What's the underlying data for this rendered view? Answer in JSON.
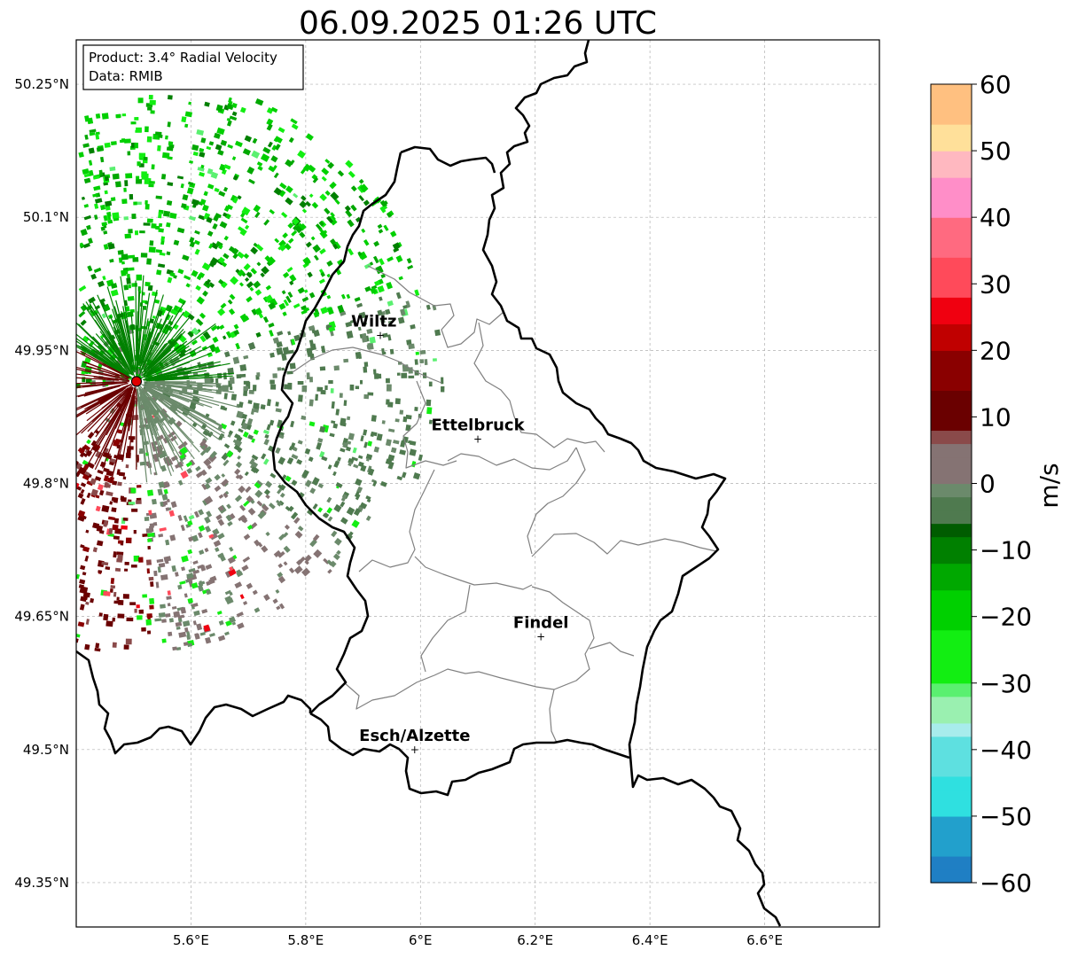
{
  "title": "06.09.2025 01:26 UTC",
  "info_box": {
    "product_line": "Product: 3.4° Radial Velocity",
    "data_line": "Data: RMIB"
  },
  "map": {
    "lon_range": [
      5.4,
      6.8
    ],
    "lat_range": [
      49.3,
      50.3
    ],
    "lon_ticks": [
      {
        "value": 5.6,
        "label": "5.6°E"
      },
      {
        "value": 5.8,
        "label": "5.8°E"
      },
      {
        "value": 6.0,
        "label": "6°E"
      },
      {
        "value": 6.2,
        "label": "6.2°E"
      },
      {
        "value": 6.4,
        "label": "6.4°E"
      },
      {
        "value": 6.6,
        "label": "6.6°E"
      }
    ],
    "lat_ticks": [
      {
        "value": 49.35,
        "label": "49.35°N"
      },
      {
        "value": 49.5,
        "label": "49.5°N"
      },
      {
        "value": 49.65,
        "label": "49.65°N"
      },
      {
        "value": 49.8,
        "label": "49.8°N"
      },
      {
        "value": 49.95,
        "label": "49.95°N"
      },
      {
        "value": 50.1,
        "label": "50.1°N"
      },
      {
        "value": 50.25,
        "label": "50.25°N"
      }
    ],
    "radar_site": {
      "lon": 5.505,
      "lat": 49.915
    },
    "cities": [
      {
        "name": "Wiltz",
        "lon": 5.93,
        "lat": 49.967
      },
      {
        "name": "Ettelbruck",
        "lon": 6.1,
        "lat": 49.85
      },
      {
        "name": "Findel",
        "lon": 6.21,
        "lat": 49.627
      },
      {
        "name": "Esch/Alzette",
        "lon": 5.99,
        "lat": 49.5
      }
    ]
  },
  "colorbar": {
    "unit": "m/s",
    "min": -60,
    "max": 60,
    "ticks": [
      {
        "value": 60,
        "label": "60"
      },
      {
        "value": 50,
        "label": "50"
      },
      {
        "value": 40,
        "label": "40"
      },
      {
        "value": 30,
        "label": "30"
      },
      {
        "value": 20,
        "label": "20"
      },
      {
        "value": 10,
        "label": "10"
      },
      {
        "value": 0,
        "label": "0"
      },
      {
        "value": -10,
        "label": "−10"
      },
      {
        "value": -20,
        "label": "−20"
      },
      {
        "value": -30,
        "label": "−30"
      },
      {
        "value": -40,
        "label": "−40"
      },
      {
        "value": -50,
        "label": "−50"
      },
      {
        "value": -60,
        "label": "−60"
      }
    ],
    "color_stops": [
      {
        "value": -60,
        "color": "#1f7fc4"
      },
      {
        "value": -56,
        "color": "#22a0cc"
      },
      {
        "value": -50,
        "color": "#2fe0e0"
      },
      {
        "value": -44,
        "color": "#5ee0e0"
      },
      {
        "value": -38,
        "color": "#a8ecec"
      },
      {
        "value": -35,
        "color": "#9af0b0"
      },
      {
        "value": -32,
        "color": "#5af070"
      },
      {
        "value": -29,
        "color": "#12ee12"
      },
      {
        "value": -22,
        "color": "#00d000"
      },
      {
        "value": -16,
        "color": "#00a800"
      },
      {
        "value": -12,
        "color": "#008000"
      },
      {
        "value": -8,
        "color": "#005c00"
      },
      {
        "value": -6,
        "color": "#4f7a4f"
      },
      {
        "value": -2,
        "color": "#6b8a6b"
      },
      {
        "value": 1,
        "color": "#857373"
      },
      {
        "value": 6,
        "color": "#8a4a4a"
      },
      {
        "value": 8,
        "color": "#6a0000"
      },
      {
        "value": 14,
        "color": "#8a0000"
      },
      {
        "value": 20,
        "color": "#c00000"
      },
      {
        "value": 25,
        "color": "#f00010"
      },
      {
        "value": 28,
        "color": "#ff4a5a"
      },
      {
        "value": 34,
        "color": "#ff6a80"
      },
      {
        "value": 40,
        "color": "#ff8ec8"
      },
      {
        "value": 46,
        "color": "#ffb8c0"
      },
      {
        "value": 50,
        "color": "#ffe09a"
      },
      {
        "value": 55,
        "color": "#ffc080"
      },
      {
        "value": 60,
        "color": "#ffa050"
      }
    ]
  },
  "colors": {
    "country_border": "#000000",
    "canton_border": "#808080",
    "radar_marker": "#e00000"
  }
}
